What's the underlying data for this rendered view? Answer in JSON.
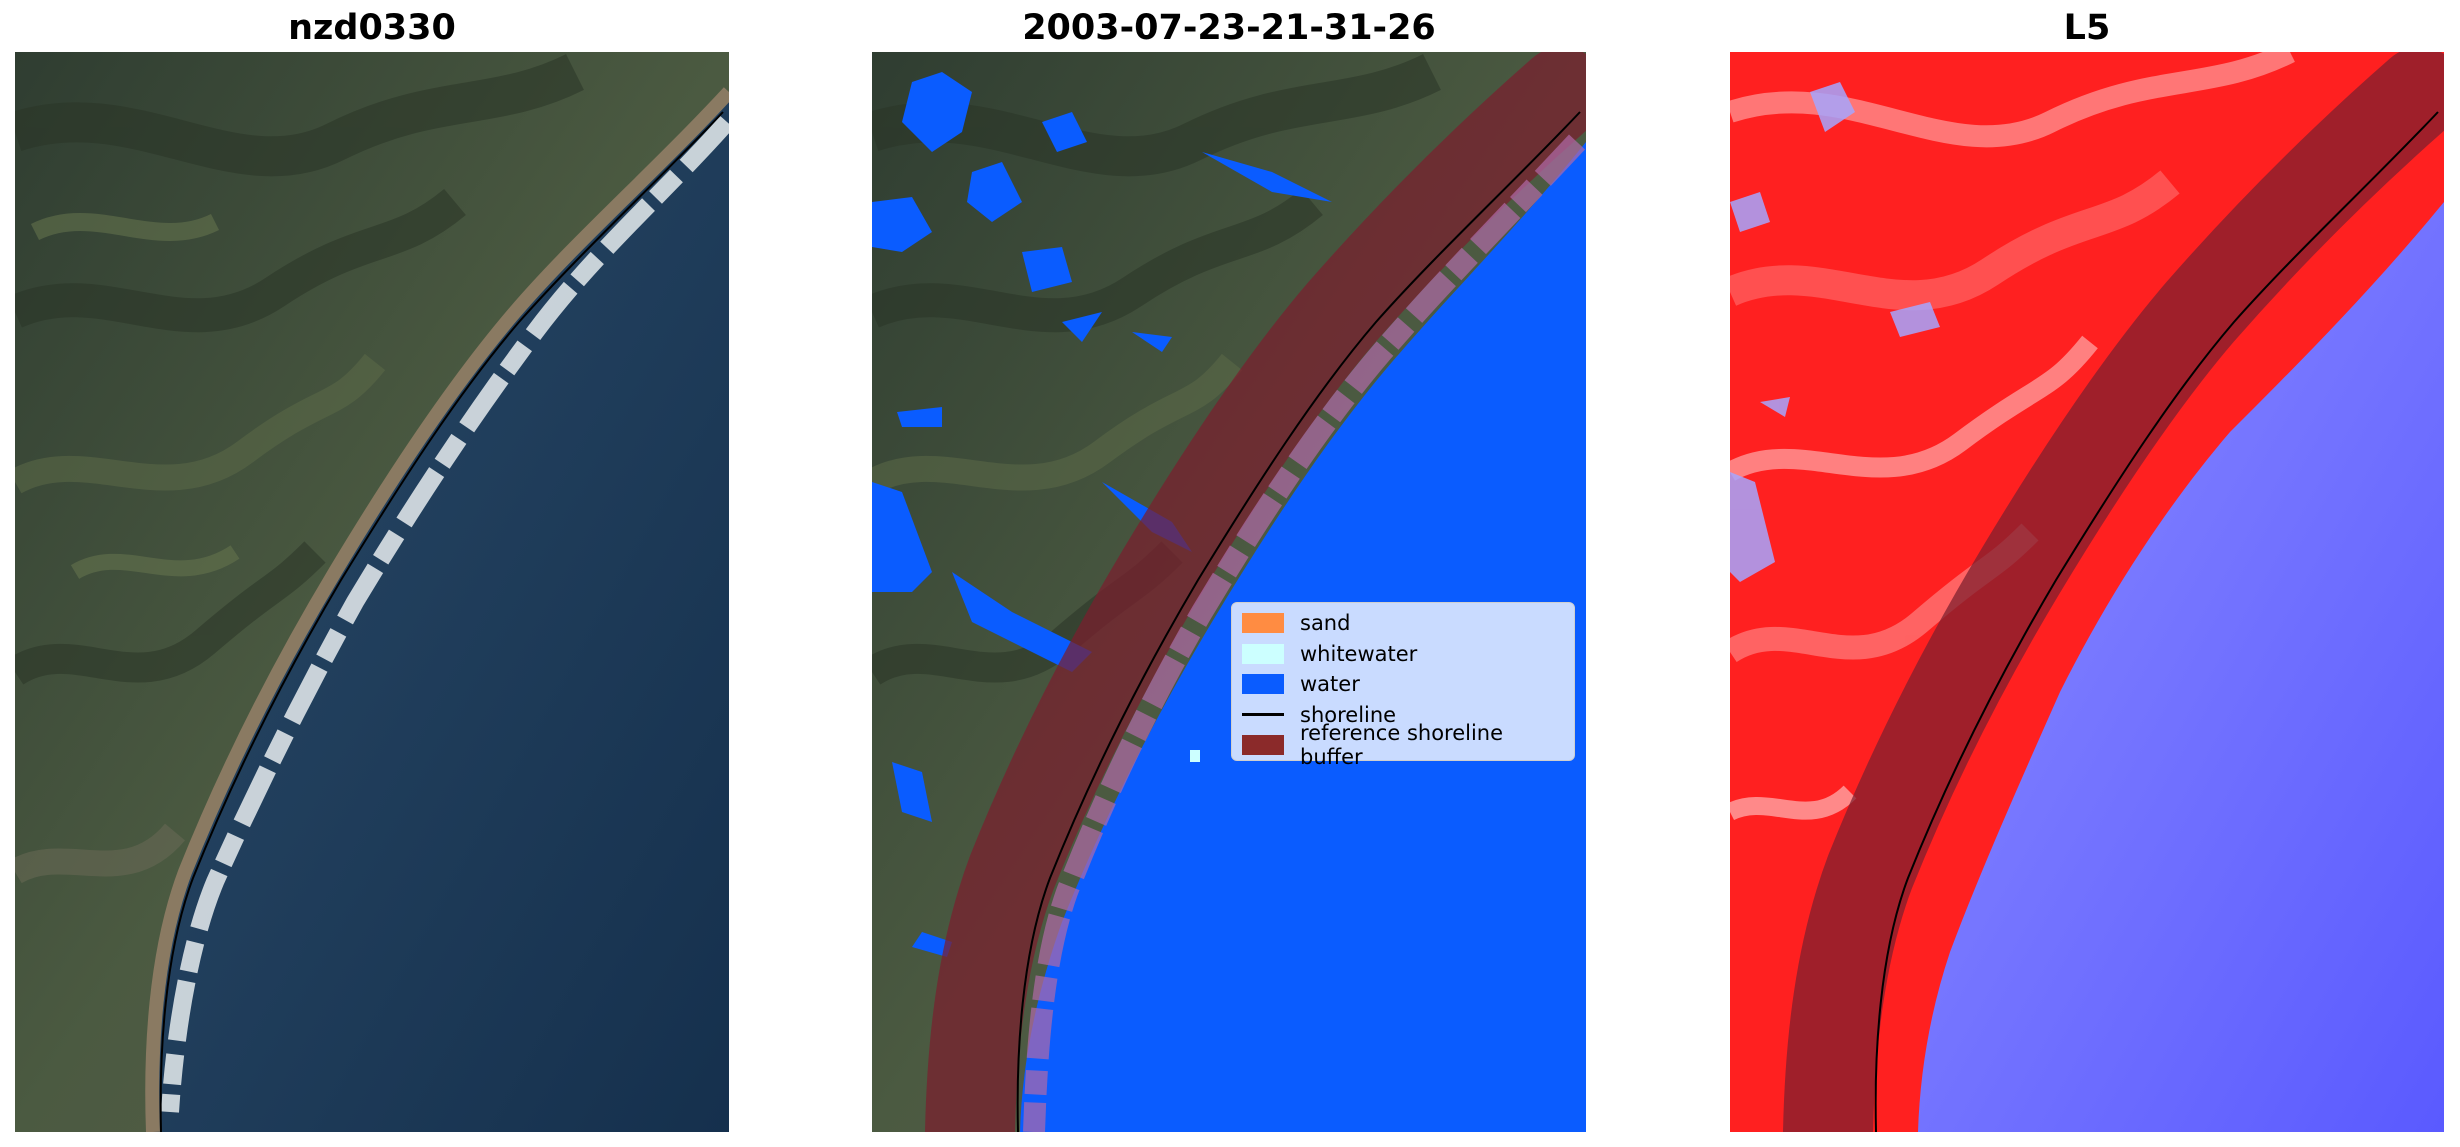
{
  "panels": [
    {
      "title": "nzd0330"
    },
    {
      "title": "2003-07-23-21-31-26"
    },
    {
      "title": "L5"
    }
  ],
  "legend": {
    "items": [
      {
        "label": "sand",
        "color": "#ff8c42"
      },
      {
        "label": "whitewater",
        "color": "#ccffff"
      },
      {
        "label": "water",
        "color": "#0a5cff"
      },
      {
        "label": "shoreline",
        "color": "#000000"
      },
      {
        "label": "reference shoreline buffer",
        "color": "#8b2a2a"
      }
    ]
  },
  "colors": {
    "land": "#3e5038",
    "ocean": "#1e3b5a",
    "surf": "#e6ecef",
    "water_class": "#0a5cff",
    "buffer": "#7a1f2e",
    "index_land": "#ff1a1a",
    "index_water": "#3c3cff"
  }
}
